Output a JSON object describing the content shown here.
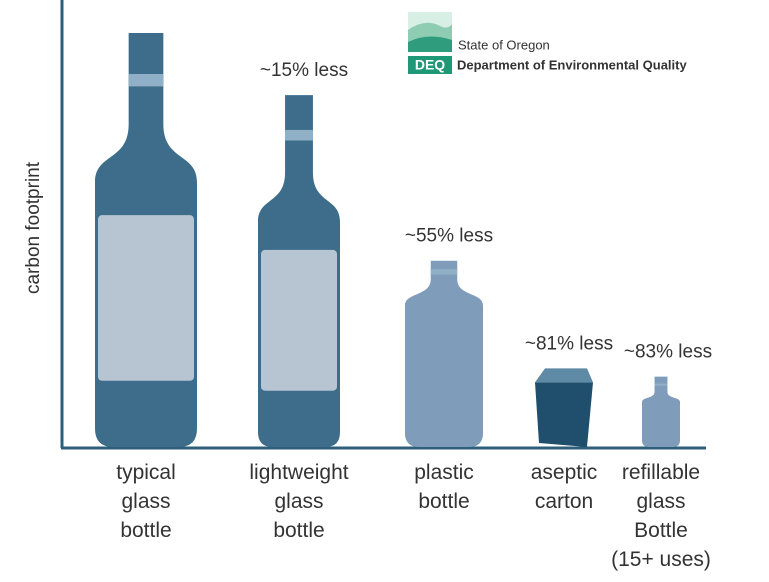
{
  "chart_data": {
    "type": "pictogram",
    "y_label": "carbon footprint",
    "categories": [
      "typical\nglass\nbottle",
      "lightweight\nglass\nbottle",
      "plastic\nbottle",
      "aseptic\ncarton",
      "refillable\nglass\nBottle\n(15+ uses)"
    ],
    "values": [
      0,
      15,
      55,
      81,
      83
    ],
    "value_labels": [
      null,
      "~15% less",
      "~55% less",
      "~81% less",
      "~83% less"
    ],
    "colors": [
      "#3d6d8a",
      "#3d6d8a",
      "#7f9cba",
      "#1f4f6c",
      "#7f9cba"
    ],
    "ylim": [
      100,
      0
    ]
  },
  "logo": {
    "line1": "State of Oregon",
    "badge": "DEQ",
    "line2": "Department of Environmental Quality"
  }
}
